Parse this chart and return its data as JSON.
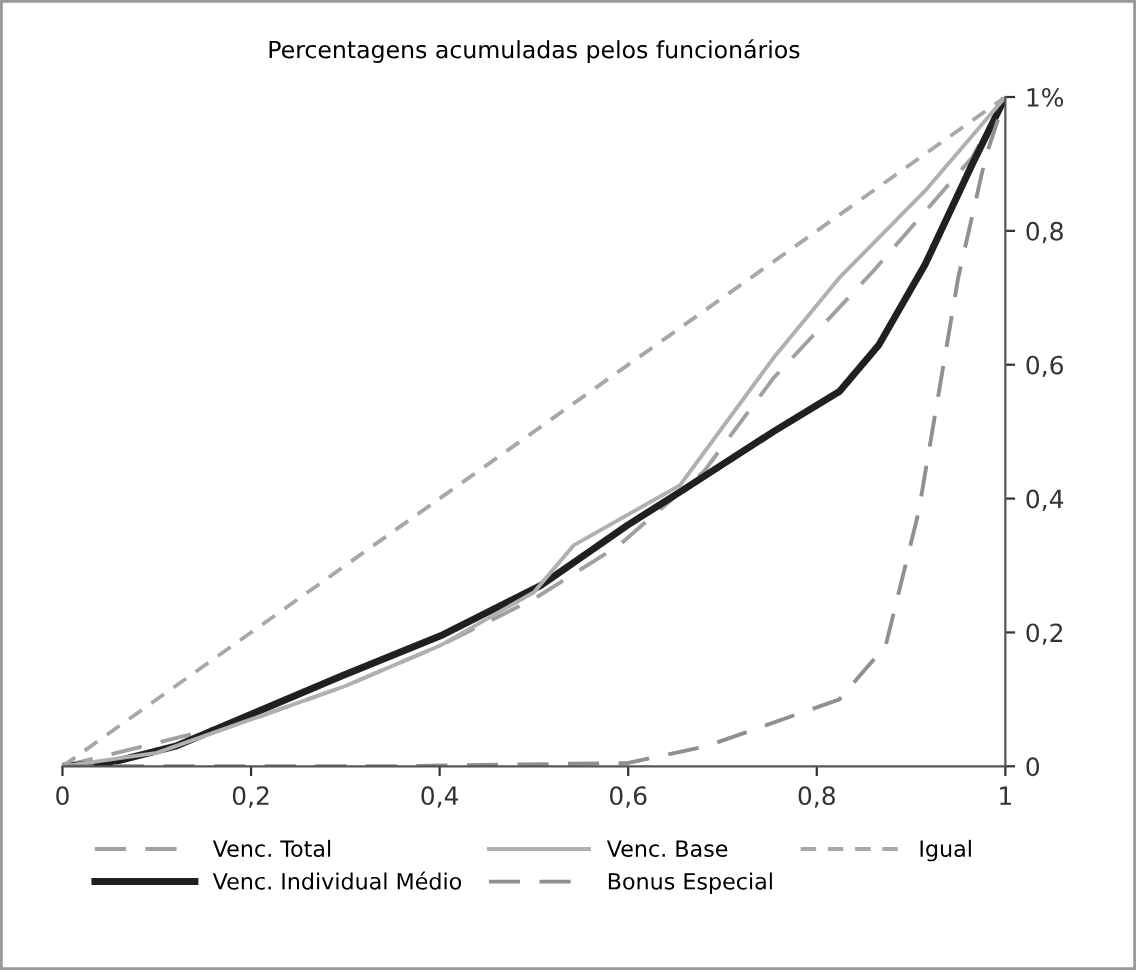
{
  "chart_data": {
    "type": "line",
    "title": "Percentagens acumuladas pelos funcionários",
    "xlim": [
      0,
      1
    ],
    "ylim": [
      0,
      1
    ],
    "xticks": [
      0,
      {
        "value": 0.2,
        "label": "0,2"
      },
      {
        "value": 0.4,
        "label": "0,4"
      },
      {
        "value": 0.6,
        "label": "0,6"
      },
      {
        "value": 0.8,
        "label": "0,8"
      },
      1
    ],
    "yticks": [
      0,
      {
        "value": 0.2,
        "label": "0,2"
      },
      {
        "value": 0.4,
        "label": "0,4"
      },
      {
        "value": 0.6,
        "label": "0,6"
      },
      {
        "value": 0.8,
        "label": "0,8"
      },
      {
        "value": 1,
        "label": "1%"
      }
    ],
    "grid": false,
    "legend": "bottom",
    "series": [
      {
        "name": "Venc. Total",
        "color": "#a0a0a0",
        "line_style": "dashed",
        "x": [
          0,
          0.2,
          0.3,
          0.4,
          0.5,
          0.59,
          0.68,
          0.754,
          0.86,
          0.965,
          1
        ],
        "values": [
          0,
          0.07,
          0.12,
          0.18,
          0.25,
          0.33,
          0.44,
          0.58,
          0.74,
          0.91,
          1
        ]
      },
      {
        "name": "Venc. Individual Médio",
        "color": "#202020",
        "line_style": "solid",
        "x": [
          0,
          0.05,
          0.12,
          0.204,
          0.296,
          0.401,
          0.507,
          0.599,
          0.655,
          0.754,
          0.824,
          0.866,
          0.915,
          0.965,
          1
        ],
        "values": [
          0,
          0.005,
          0.03,
          0.08,
          0.135,
          0.195,
          0.27,
          0.36,
          0.41,
          0.5,
          0.56,
          0.63,
          0.75,
          0.9,
          1
        ]
      },
      {
        "name": "Venc. Base",
        "color": "#b0b0b0",
        "line_style": "solid",
        "x": [
          0,
          0.1,
          0.2,
          0.3,
          0.4,
          0.5,
          0.542,
          0.655,
          0.754,
          0.824,
          0.915,
          1
        ],
        "values": [
          0,
          0.02,
          0.07,
          0.12,
          0.18,
          0.26,
          0.33,
          0.42,
          0.61,
          0.73,
          0.86,
          1
        ]
      },
      {
        "name": "Bonus Especial",
        "color": "#909090",
        "line_style": "dashed",
        "x": [
          0,
          0.35,
          0.6,
          0.683,
          0.824,
          0.873,
          0.908,
          0.95,
          0.979,
          1
        ],
        "values": [
          0,
          0,
          0.005,
          0.03,
          0.1,
          0.18,
          0.38,
          0.73,
          0.91,
          1
        ]
      },
      {
        "name": "Igual",
        "color": "#a8a8a8",
        "line_style": "dotted",
        "x": [
          0,
          1
        ],
        "values": [
          0,
          1
        ]
      }
    ]
  }
}
